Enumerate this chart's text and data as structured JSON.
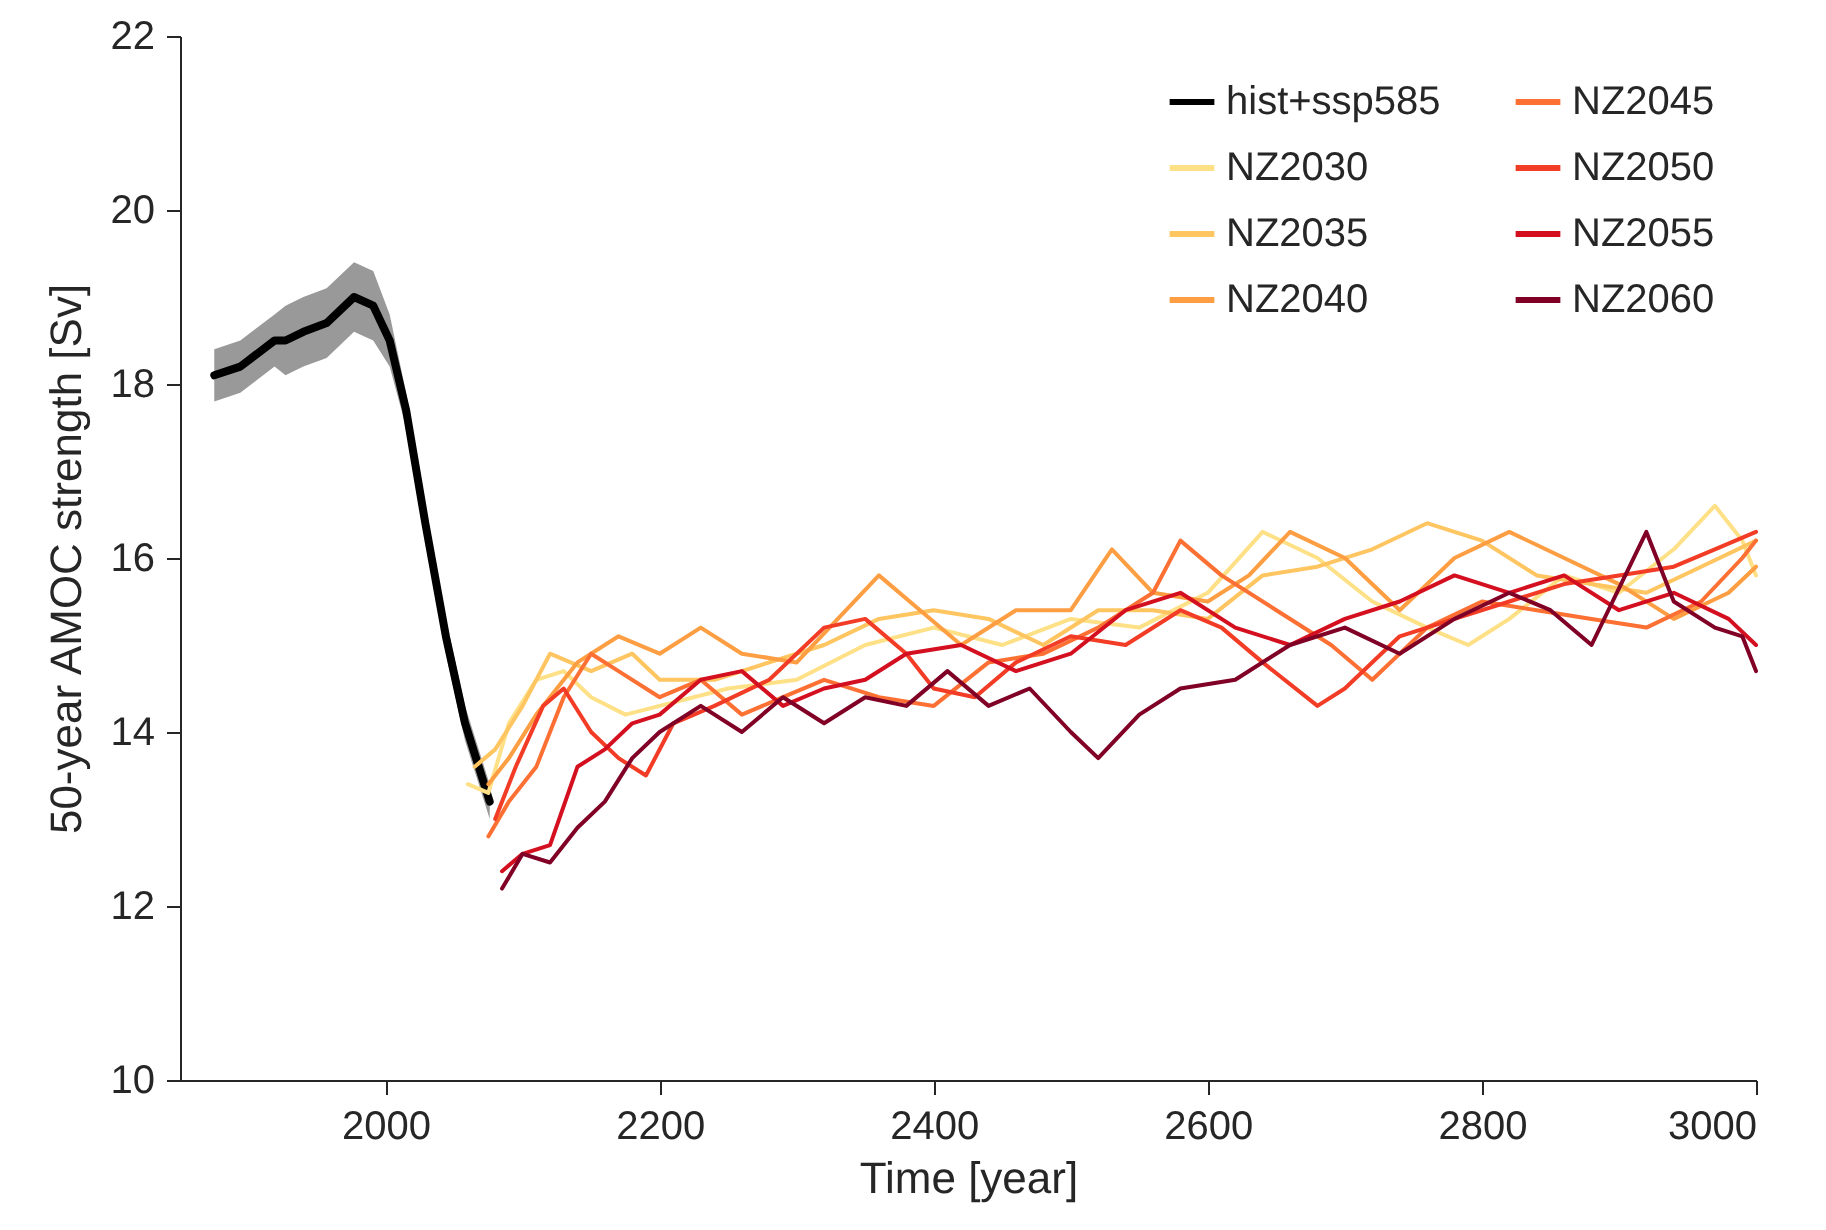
{
  "chart_data": {
    "type": "line",
    "xlabel": "Time [year]",
    "ylabel": "50-year AMOC strength [Sv]",
    "xlim": [
      1850,
      3000
    ],
    "ylim": [
      10,
      22
    ],
    "xticks": [
      2000,
      2200,
      2400,
      2600,
      2800,
      3000
    ],
    "yticks": [
      10,
      12,
      14,
      16,
      18,
      20,
      22
    ],
    "grid": false,
    "legend": "top right",
    "marker": "none",
    "line_style": "solid",
    "series": [
      {
        "name": "hist+ssp585",
        "color": "#000000",
        "x": [
          1875,
          1894,
          1919,
          1927,
          1940,
          1957,
          1977,
          1991,
          2003,
          2015,
          2029,
          2044,
          2058,
          2076
        ],
        "values": [
          18.1,
          18.2,
          18.5,
          18.5,
          18.6,
          18.7,
          19.0,
          18.9,
          18.5,
          17.7,
          16.4,
          15.1,
          14.1,
          13.2
        ],
        "lower": [
          17.8,
          17.9,
          18.2,
          18.1,
          18.2,
          18.3,
          18.6,
          18.5,
          18.2,
          17.5,
          16.3,
          14.9,
          13.9,
          13.0
        ],
        "upper": [
          18.4,
          18.5,
          18.8,
          18.9,
          19.0,
          19.1,
          19.4,
          19.3,
          18.8,
          17.9,
          16.6,
          15.3,
          14.3,
          13.4
        ]
      },
      {
        "name": "NZ2030",
        "color": "#fee087",
        "x": [
          2060,
          2075,
          2090,
          2110,
          2130,
          2150,
          2175,
          2200,
          2250,
          2300,
          2350,
          2400,
          2450,
          2500,
          2550,
          2600,
          2640,
          2680,
          2720,
          2760,
          2790,
          2820,
          2860,
          2900,
          2940,
          2970,
          2990,
          3000
        ],
        "values": [
          13.4,
          13.3,
          14.1,
          14.6,
          14.7,
          14.4,
          14.2,
          14.3,
          14.5,
          14.6,
          15.0,
          15.2,
          15.0,
          15.3,
          15.2,
          15.6,
          16.3,
          16.0,
          15.5,
          15.2,
          15.0,
          15.3,
          15.8,
          15.6,
          16.1,
          16.6,
          16.2,
          15.8
        ]
      },
      {
        "name": "NZ2035",
        "color": "#fec561",
        "x": [
          2065,
          2080,
          2100,
          2120,
          2150,
          2180,
          2200,
          2240,
          2280,
          2320,
          2360,
          2400,
          2440,
          2480,
          2520,
          2560,
          2600,
          2640,
          2680,
          2720,
          2760,
          2800,
          2840,
          2880,
          2920,
          2960,
          3000
        ],
        "values": [
          13.6,
          13.8,
          14.3,
          14.9,
          14.7,
          14.9,
          14.6,
          14.6,
          14.8,
          15.0,
          15.3,
          15.4,
          15.3,
          15.0,
          15.4,
          15.4,
          15.3,
          15.8,
          15.9,
          16.1,
          16.4,
          16.2,
          15.8,
          15.7,
          15.6,
          15.9,
          16.2
        ]
      },
      {
        "name": "NZ2040",
        "color": "#fd9e43",
        "x": [
          2075,
          2090,
          2110,
          2140,
          2170,
          2200,
          2230,
          2260,
          2300,
          2330,
          2360,
          2390,
          2420,
          2460,
          2500,
          2530,
          2560,
          2600,
          2630,
          2660,
          2700,
          2740,
          2780,
          2820,
          2860,
          2900,
          2940,
          2980,
          3000
        ],
        "values": [
          13.4,
          13.7,
          14.2,
          14.8,
          15.1,
          14.9,
          15.2,
          14.9,
          14.8,
          15.3,
          15.8,
          15.4,
          15.0,
          15.4,
          15.4,
          16.1,
          15.6,
          15.5,
          15.8,
          16.3,
          16.0,
          15.4,
          16.0,
          16.3,
          16.0,
          15.7,
          15.3,
          15.6,
          15.9
        ]
      },
      {
        "name": "NZ2045",
        "color": "#fc7034",
        "x": [
          2075,
          2090,
          2110,
          2130,
          2150,
          2170,
          2200,
          2230,
          2260,
          2290,
          2320,
          2360,
          2400,
          2440,
          2480,
          2520,
          2560,
          2580,
          2610,
          2650,
          2690,
          2720,
          2760,
          2800,
          2840,
          2880,
          2920,
          2960,
          2990,
          3000
        ],
        "values": [
          12.8,
          13.2,
          13.6,
          14.4,
          14.9,
          14.7,
          14.4,
          14.6,
          14.2,
          14.4,
          14.6,
          14.4,
          14.3,
          14.8,
          14.9,
          15.2,
          15.6,
          16.2,
          15.8,
          15.4,
          15.0,
          14.6,
          15.2,
          15.5,
          15.4,
          15.3,
          15.2,
          15.5,
          16.0,
          16.2
        ]
      },
      {
        "name": "NZ2050",
        "color": "#f23c26",
        "x": [
          2080,
          2095,
          2115,
          2130,
          2150,
          2170,
          2190,
          2210,
          2240,
          2280,
          2320,
          2350,
          2380,
          2400,
          2430,
          2460,
          2500,
          2540,
          2580,
          2610,
          2640,
          2680,
          2700,
          2740,
          2780,
          2820,
          2860,
          2900,
          2940,
          2970,
          3000
        ],
        "values": [
          13.0,
          13.6,
          14.3,
          14.5,
          14.0,
          13.7,
          13.5,
          14.1,
          14.3,
          14.6,
          15.2,
          15.3,
          14.9,
          14.5,
          14.4,
          14.8,
          15.1,
          15.0,
          15.4,
          15.2,
          14.8,
          14.3,
          14.5,
          15.1,
          15.3,
          15.5,
          15.7,
          15.8,
          15.9,
          16.1,
          16.3
        ]
      },
      {
        "name": "NZ2055",
        "color": "#d41020",
        "x": [
          2085,
          2100,
          2120,
          2140,
          2160,
          2180,
          2200,
          2230,
          2260,
          2290,
          2320,
          2350,
          2380,
          2420,
          2460,
          2500,
          2540,
          2580,
          2620,
          2660,
          2700,
          2740,
          2780,
          2820,
          2860,
          2900,
          2940,
          2980,
          3000
        ],
        "values": [
          12.4,
          12.6,
          12.7,
          13.6,
          13.8,
          14.1,
          14.2,
          14.6,
          14.7,
          14.3,
          14.5,
          14.6,
          14.9,
          15.0,
          14.7,
          14.9,
          15.4,
          15.6,
          15.2,
          15.0,
          15.3,
          15.5,
          15.8,
          15.6,
          15.8,
          15.4,
          15.6,
          15.3,
          15.0
        ]
      },
      {
        "name": "NZ2060",
        "color": "#800026",
        "x": [
          2085,
          2100,
          2120,
          2140,
          2160,
          2180,
          2200,
          2230,
          2260,
          2290,
          2320,
          2350,
          2380,
          2410,
          2440,
          2470,
          2500,
          2520,
          2550,
          2580,
          2620,
          2660,
          2700,
          2740,
          2780,
          2820,
          2850,
          2880,
          2920,
          2940,
          2970,
          2990,
          3000
        ],
        "values": [
          12.2,
          12.6,
          12.5,
          12.9,
          13.2,
          13.7,
          14.0,
          14.3,
          14.0,
          14.4,
          14.1,
          14.4,
          14.3,
          14.7,
          14.3,
          14.5,
          14.0,
          13.7,
          14.2,
          14.5,
          14.6,
          15.0,
          15.2,
          14.9,
          15.3,
          15.6,
          15.4,
          15.0,
          16.3,
          15.5,
          15.2,
          15.1,
          14.7
        ]
      }
    ]
  }
}
